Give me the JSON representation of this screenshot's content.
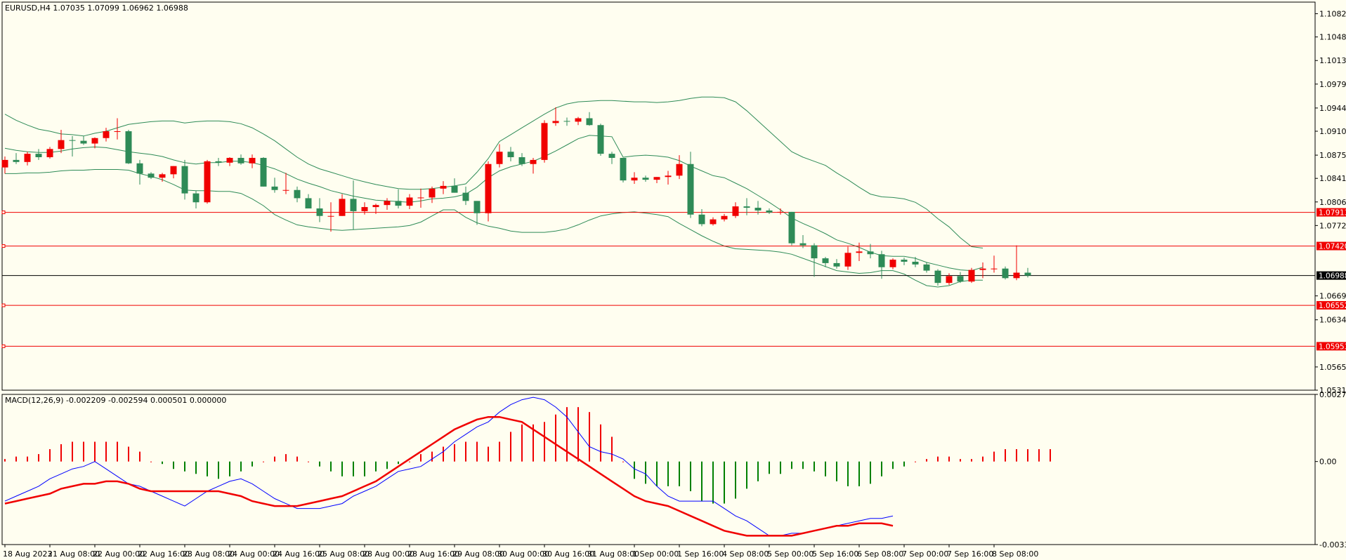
{
  "chart_data": [
    {
      "type": "candlestick",
      "info": "EURUSD,H4  1.07035 1.07099 1.06962 1.06988",
      "colors": {
        "bull": "#f00000",
        "bear": "#2e8b57",
        "band": "#2e8b57",
        "level": "#f00000",
        "background": "#fffef0"
      },
      "ylim": [
        1.0531,
        1.1099
      ],
      "y_ticks": [
        "1.10820",
        "1.10480",
        "1.10135",
        "1.09790",
        "1.09440",
        "1.09100",
        "1.08750",
        "1.08410",
        "1.08065",
        "1.07720",
        "1.06690",
        "1.06340",
        "1.05650",
        "1.05310"
      ],
      "y_tick_values": [
        1.1082,
        1.1048,
        1.10135,
        1.0979,
        1.0944,
        1.091,
        1.0875,
        1.0841,
        1.08065,
        1.0772,
        1.0669,
        1.0634,
        1.0565,
        1.0531
      ],
      "horizontal_levels": [
        {
          "value": 1.07913,
          "label": "1.07913"
        },
        {
          "value": 1.0742,
          "label": "1.07420"
        },
        {
          "value": 1.06552,
          "label": "1.06552"
        },
        {
          "value": 1.05953,
          "label": "1.05953"
        }
      ],
      "current_price": {
        "value": 1.06988,
        "label": "1.06988"
      },
      "x_labels": [
        "18 Aug 2023",
        "21 Aug 08:00",
        "22 Aug 00:00",
        "22 Aug 16:00",
        "23 Aug 08:00",
        "24 Aug 00:00",
        "24 Aug 16:00",
        "25 Aug 08:00",
        "28 Aug 00:00",
        "28 Aug 16:00",
        "29 Aug 08:00",
        "30 Aug 00:00",
        "30 Aug 16:00",
        "31 Aug 08:00",
        "1 Sep 00:00",
        "1 Sep 16:00",
        "4 Sep 08:00",
        "5 Sep 00:00",
        "5 Sep 16:00",
        "6 Sep 08:00",
        "7 Sep 00:00",
        "7 Sep 16:00",
        "8 Sep 08:00"
      ],
      "x_label_bars": [
        0,
        4,
        8,
        12,
        16,
        20,
        24,
        28,
        32,
        36,
        40,
        44,
        48,
        52,
        56,
        60,
        64,
        68,
        72,
        76,
        80,
        84,
        88
      ],
      "candles": [
        [
          1.0857,
          1.0873,
          1.0848,
          1.0868
        ],
        [
          1.0868,
          1.0878,
          1.0862,
          1.0865
        ],
        [
          1.0865,
          1.088,
          1.086,
          1.0877
        ],
        [
          1.0877,
          1.0884,
          1.0868,
          1.0872
        ],
        [
          1.0872,
          1.0887,
          1.087,
          1.0884
        ],
        [
          1.0884,
          1.0912,
          1.0878,
          1.0897
        ],
        [
          1.0897,
          1.0903,
          1.0873,
          1.0896
        ],
        [
          1.0896,
          1.0903,
          1.089,
          1.0892
        ],
        [
          1.0892,
          1.0901,
          1.0885,
          1.09
        ],
        [
          1.09,
          1.0915,
          1.0895,
          1.091
        ],
        [
          1.091,
          1.0929,
          1.0898,
          1.091
        ],
        [
          1.091,
          1.0912,
          1.0862,
          1.0863
        ],
        [
          1.0863,
          1.0868,
          1.0832,
          1.0848
        ],
        [
          1.0848,
          1.085,
          1.084,
          1.0842
        ],
        [
          1.0842,
          1.0849,
          1.0836,
          1.0847
        ],
        [
          1.0847,
          1.0859,
          1.0841,
          1.0859
        ],
        [
          1.0859,
          1.0868,
          1.081,
          1.0819
        ],
        [
          1.0819,
          1.0823,
          1.0797,
          1.0806
        ],
        [
          1.0806,
          1.0868,
          1.0804,
          1.0866
        ],
        [
          1.0866,
          1.0871,
          1.0859,
          1.0864
        ],
        [
          1.0864,
          1.0872,
          1.0859,
          1.0871
        ],
        [
          1.0871,
          1.0876,
          1.0861,
          1.0863
        ],
        [
          1.0863,
          1.0876,
          1.0856,
          1.0871
        ],
        [
          1.0871,
          1.0872,
          1.0829,
          1.0829
        ],
        [
          1.0829,
          1.0842,
          1.082,
          1.0824
        ],
        [
          1.0824,
          1.0849,
          1.0818,
          1.0824
        ],
        [
          1.0824,
          1.0829,
          1.0806,
          1.0812
        ],
        [
          1.0812,
          1.0818,
          1.0797,
          1.0797
        ],
        [
          1.0797,
          1.0812,
          1.0777,
          1.0786
        ],
        [
          1.0786,
          1.0806,
          1.0763,
          1.0786
        ],
        [
          1.0786,
          1.0818,
          1.0786,
          1.0811
        ],
        [
          1.0811,
          1.0838,
          1.0766,
          1.0793
        ],
        [
          1.0793,
          1.0806,
          1.0788,
          1.0799
        ],
        [
          1.0799,
          1.0804,
          1.0789,
          1.0802
        ],
        [
          1.0802,
          1.0812,
          1.0795,
          1.0808
        ],
        [
          1.0808,
          1.0825,
          1.0797,
          1.0801
        ],
        [
          1.0801,
          1.0818,
          1.0796,
          1.0813
        ],
        [
          1.0813,
          1.0826,
          1.0798,
          1.0813
        ],
        [
          1.0813,
          1.0829,
          1.0805,
          1.0826
        ],
        [
          1.0826,
          1.0837,
          1.0818,
          1.083
        ],
        [
          1.083,
          1.0841,
          1.082,
          1.082
        ],
        [
          1.082,
          1.0829,
          1.0802,
          1.0808
        ],
        [
          1.0808,
          1.0808,
          1.0773,
          1.079
        ],
        [
          1.079,
          1.0866,
          1.0778,
          1.0862
        ],
        [
          1.0862,
          1.0891,
          1.0857,
          1.088
        ],
        [
          1.088,
          1.0887,
          1.0866,
          1.0872
        ],
        [
          1.0872,
          1.0878,
          1.0859,
          1.0862
        ],
        [
          1.0862,
          1.0871,
          1.0848,
          1.0868
        ],
        [
          1.0868,
          1.0926,
          1.0864,
          1.0922
        ],
        [
          1.0922,
          1.0945,
          1.0918,
          1.0925
        ],
        [
          1.0925,
          1.093,
          1.0918,
          1.0924
        ],
        [
          1.0924,
          1.0931,
          1.0919,
          1.0929
        ],
        [
          1.0929,
          1.0938,
          1.0918,
          1.0919
        ],
        [
          1.0919,
          1.0921,
          1.0874,
          1.0877
        ],
        [
          1.0877,
          1.088,
          1.0862,
          1.0871
        ],
        [
          1.0871,
          1.0871,
          1.0835,
          1.0838
        ],
        [
          1.0838,
          1.085,
          1.0833,
          1.0842
        ],
        [
          1.0842,
          1.0845,
          1.0836,
          1.0839
        ],
        [
          1.0839,
          1.0843,
          1.0834,
          1.0843
        ],
        [
          1.0843,
          1.0852,
          1.0832,
          1.0845
        ],
        [
          1.0845,
          1.0875,
          1.084,
          1.0862
        ],
        [
          1.0862,
          1.088,
          1.0783,
          1.0788
        ],
        [
          1.0788,
          1.0796,
          1.0771,
          1.0774
        ],
        [
          1.0774,
          1.0784,
          1.0772,
          1.0781
        ],
        [
          1.0781,
          1.0789,
          1.0778,
          1.0786
        ],
        [
          1.0786,
          1.0806,
          1.0783,
          1.08
        ],
        [
          1.08,
          1.0812,
          1.0787,
          1.0798
        ],
        [
          1.0798,
          1.0808,
          1.0788,
          1.0794
        ],
        [
          1.0794,
          1.0797,
          1.0789,
          1.0791
        ],
        [
          1.0791,
          1.0797,
          1.0788,
          1.0792
        ],
        [
          1.0792,
          1.0792,
          1.0743,
          1.0746
        ],
        [
          1.0746,
          1.0758,
          1.0739,
          1.0743
        ],
        [
          1.0743,
          1.0746,
          1.0697,
          1.0724
        ],
        [
          1.0724,
          1.0726,
          1.0711,
          1.0717
        ],
        [
          1.0717,
          1.0723,
          1.0709,
          1.0712
        ],
        [
          1.0712,
          1.0741,
          1.0707,
          1.0732
        ],
        [
          1.0732,
          1.0747,
          1.072,
          1.0734
        ],
        [
          1.0734,
          1.0745,
          1.0724,
          1.073
        ],
        [
          1.073,
          1.0735,
          1.0694,
          1.0711
        ],
        [
          1.0711,
          1.0724,
          1.0708,
          1.0722
        ],
        [
          1.0722,
          1.0725,
          1.0714,
          1.0719
        ],
        [
          1.0719,
          1.0726,
          1.0711,
          1.0715
        ],
        [
          1.0715,
          1.0718,
          1.0703,
          1.0706
        ],
        [
          1.0706,
          1.0708,
          1.0684,
          1.0688
        ],
        [
          1.0688,
          1.0702,
          1.0685,
          1.0698
        ],
        [
          1.0698,
          1.0704,
          1.0688,
          1.069
        ],
        [
          1.069,
          1.071,
          1.0688,
          1.0707
        ],
        [
          1.0707,
          1.0718,
          1.0695,
          1.0709
        ],
        [
          1.0709,
          1.0728,
          1.0703,
          1.0709
        ],
        [
          1.0709,
          1.0712,
          1.0693,
          1.0695
        ],
        [
          1.0695,
          1.0743,
          1.0692,
          1.0703
        ],
        [
          1.0703,
          1.071,
          1.0696,
          1.06988
        ]
      ],
      "bb_upper": [
        1.0935,
        1.0926,
        1.0919,
        1.0913,
        1.091,
        1.0906,
        1.0905,
        1.0903,
        1.0907,
        1.091,
        1.0915,
        1.092,
        1.0922,
        1.0924,
        1.0925,
        1.0925,
        1.0922,
        1.0924,
        1.0925,
        1.0925,
        1.0924,
        1.0921,
        1.0915,
        1.0906,
        1.0896,
        1.0884,
        1.0872,
        1.0862,
        1.0855,
        1.085,
        1.0845,
        1.084,
        1.0836,
        1.0832,
        1.0829,
        1.0826,
        1.0825,
        1.0825,
        1.0826,
        1.0828,
        1.083,
        1.0833,
        1.085,
        1.087,
        1.0895,
        1.0905,
        1.0915,
        1.0925,
        1.0935,
        1.0944,
        1.095,
        1.0953,
        1.0954,
        1.0955,
        1.0955,
        1.0954,
        1.0953,
        1.0953,
        1.0952,
        1.0953,
        1.0955,
        1.0958,
        1.096,
        1.096,
        1.0959,
        1.0953,
        1.094,
        1.0925,
        1.091,
        1.0895,
        1.088,
        1.0872,
        1.0866,
        1.086,
        1.0849,
        1.0839,
        1.0828,
        1.0818,
        1.0814,
        1.0813,
        1.0811,
        1.0806,
        1.0796,
        1.0782,
        1.077,
        1.0754,
        1.0741,
        1.0739
      ],
      "bb_middle": [
        1.0885,
        1.0882,
        1.088,
        1.0879,
        1.0879,
        1.0881,
        1.0884,
        1.0886,
        1.0887,
        1.0886,
        1.0883,
        1.088,
        1.0878,
        1.0876,
        1.0873,
        1.0868,
        1.0864,
        1.0862,
        1.0864,
        1.0864,
        1.0866,
        1.0866,
        1.0864,
        1.086,
        1.0855,
        1.0848,
        1.084,
        1.0834,
        1.0829,
        1.0823,
        1.0819,
        1.0815,
        1.0812,
        1.0809,
        1.0808,
        1.0807,
        1.0806,
        1.0808,
        1.0811,
        1.0812,
        1.0814,
        1.0818,
        1.0828,
        1.0842,
        1.0852,
        1.0858,
        1.0862,
        1.0866,
        1.0873,
        1.0881,
        1.089,
        1.0899,
        1.0904,
        1.0903,
        1.0902,
        1.0872,
        1.0874,
        1.0875,
        1.0874,
        1.0872,
        1.0867,
        1.0859,
        1.0852,
        1.0845,
        1.0842,
        1.0834,
        1.0826,
        1.0816,
        1.0806,
        1.0795,
        1.0783,
        1.0775,
        1.0768,
        1.076,
        1.0751,
        1.0746,
        1.074,
        1.0733,
        1.0728,
        1.0727,
        1.0727,
        1.0724,
        1.0718,
        1.0714,
        1.071,
        1.0707,
        1.0706,
        1.0711
      ],
      "bb_lower": [
        1.0848,
        1.0848,
        1.0849,
        1.0849,
        1.085,
        1.0852,
        1.0853,
        1.0853,
        1.0854,
        1.0854,
        1.0854,
        1.0853,
        1.0848,
        1.0844,
        1.0839,
        1.0832,
        1.0824,
        1.0823,
        1.0823,
        1.0822,
        1.0822,
        1.0819,
        1.0811,
        1.0801,
        1.0788,
        1.078,
        1.0773,
        1.077,
        1.0768,
        1.0766,
        1.0765,
        1.0766,
        1.0767,
        1.0768,
        1.0769,
        1.077,
        1.0772,
        1.0777,
        1.0786,
        1.0795,
        1.0795,
        1.0784,
        1.0776,
        1.0771,
        1.0768,
        1.0764,
        1.0762,
        1.0762,
        1.0762,
        1.0764,
        1.0767,
        1.0773,
        1.078,
        1.0786,
        1.0789,
        1.0791,
        1.0792,
        1.079,
        1.0788,
        1.0785,
        1.0775,
        1.0766,
        1.0757,
        1.0749,
        1.0742,
        1.0738,
        1.0737,
        1.0736,
        1.0735,
        1.0733,
        1.073,
        1.0724,
        1.0718,
        1.0712,
        1.0706,
        1.0704,
        1.0702,
        1.0703,
        1.0706,
        1.0706,
        1.0701,
        1.0692,
        1.0684,
        1.0682,
        1.0684,
        1.069,
        1.0692,
        1.0692
      ]
    },
    {
      "type": "macd",
      "info": "MACD(12,26,9) -0.002209 -0.002594 0.000501 0.000000",
      "ylim": [
        -0.003358,
        0.002715
      ],
      "y_ticks": [
        "0.002715",
        "0.00",
        "-0.003358"
      ],
      "y_tick_values": [
        0.002715,
        0,
        -0.003358
      ],
      "colors": {
        "hist_up": "#f00000",
        "hist_down": "#008000",
        "macd": "#0000ff",
        "signal": "#f00000"
      },
      "histogram": [
        0.0001,
        0.0002,
        0.0002,
        0.0003,
        0.0005,
        0.0007,
        0.0008,
        0.0008,
        0.0008,
        0.0008,
        0.0008,
        0.0006,
        0.0004,
        0.0,
        -0.0001,
        -0.0003,
        -0.0004,
        -0.0005,
        -0.0006,
        -0.0007,
        -0.0006,
        -0.0004,
        -0.0002,
        0.0,
        0.0002,
        0.0003,
        0.0002,
        0.0,
        -0.0002,
        -0.0004,
        -0.0006,
        -0.0006,
        -0.0006,
        -0.0004,
        -0.0003,
        -0.0001,
        0.0,
        0.0003,
        0.0004,
        0.0006,
        0.0007,
        0.0008,
        0.0008,
        0.0006,
        0.0008,
        0.0012,
        0.0015,
        0.0015,
        0.0016,
        0.0019,
        0.0022,
        0.0022,
        0.002,
        0.0015,
        0.001,
        0.0,
        -0.0007,
        -0.0009,
        -0.001,
        -0.001,
        -0.001,
        -0.0012,
        -0.0016,
        -0.0017,
        -0.0017,
        -0.0015,
        -0.0011,
        -0.0008,
        -0.0005,
        -0.0005,
        -0.0003,
        -0.0003,
        -0.0004,
        -0.0006,
        -0.0008,
        -0.001,
        -0.001,
        -0.0009,
        -0.0006,
        -0.0003,
        -0.0002,
        0.0,
        0.0001,
        0.0002,
        0.0002,
        0.0001,
        0.0001,
        0.0002,
        0.0004,
        0.0005,
        0.0005,
        0.0005,
        0.0005,
        0.0005
      ],
      "macd": [
        -0.0016,
        -0.0014,
        -0.0012,
        -0.001,
        -0.0007,
        -0.0005,
        -0.0003,
        -0.0002,
        0.0,
        -0.0003,
        -0.0006,
        -0.0009,
        -0.001,
        -0.0012,
        -0.0014,
        -0.0016,
        -0.0018,
        -0.0015,
        -0.0012,
        -0.001,
        -0.0008,
        -0.0007,
        -0.0009,
        -0.0012,
        -0.0015,
        -0.0017,
        -0.0019,
        -0.0019,
        -0.0019,
        -0.0018,
        -0.0017,
        -0.0014,
        -0.0012,
        -0.001,
        -0.0007,
        -0.0004,
        -0.0003,
        -0.0002,
        0.0001,
        0.0004,
        0.0008,
        0.0011,
        0.0014,
        0.0016,
        0.002,
        0.0023,
        0.0025,
        0.0026,
        0.0025,
        0.0022,
        0.0018,
        0.0012,
        0.0006,
        0.0004,
        0.0003,
        0.0001,
        -0.0003,
        -0.0005,
        -0.001,
        -0.0014,
        -0.0016,
        -0.0016,
        -0.0016,
        -0.0016,
        -0.0019,
        -0.0022,
        -0.0024,
        -0.0027,
        -0.003,
        -0.003,
        -0.0029,
        -0.0029,
        -0.0028,
        -0.0027,
        -0.0026,
        -0.0025,
        -0.0024,
        -0.0023,
        -0.0023,
        -0.0022
      ],
      "signal": [
        -0.0017,
        -0.0016,
        -0.0015,
        -0.0014,
        -0.0013,
        -0.0011,
        -0.001,
        -0.0009,
        -0.0009,
        -0.0008,
        -0.0008,
        -0.0009,
        -0.0011,
        -0.0012,
        -0.0012,
        -0.0012,
        -0.0012,
        -0.0012,
        -0.0012,
        -0.0012,
        -0.0013,
        -0.0014,
        -0.0016,
        -0.0017,
        -0.0018,
        -0.0018,
        -0.0018,
        -0.0017,
        -0.0016,
        -0.0015,
        -0.0014,
        -0.0012,
        -0.001,
        -0.0008,
        -0.0005,
        -0.0002,
        0.0001,
        0.0004,
        0.0007,
        0.001,
        0.0013,
        0.0015,
        0.0017,
        0.0018,
        0.0018,
        0.0017,
        0.0016,
        0.0013,
        0.001,
        0.0007,
        0.0004,
        0.0001,
        -0.0002,
        -0.0005,
        -0.0008,
        -0.0011,
        -0.0014,
        -0.0016,
        -0.0017,
        -0.0018,
        -0.002,
        -0.0022,
        -0.0024,
        -0.0026,
        -0.0028,
        -0.0029,
        -0.003,
        -0.003,
        -0.003,
        -0.003,
        -0.003,
        -0.0029,
        -0.0028,
        -0.0027,
        -0.0026,
        -0.0026,
        -0.0025,
        -0.0025,
        -0.0025,
        -0.0026
      ]
    }
  ]
}
